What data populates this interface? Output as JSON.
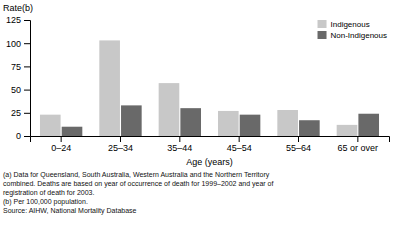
{
  "chart_data": {
    "type": "bar",
    "categories": [
      "0–24",
      "25–34",
      "35–44",
      "45–54",
      "55–64",
      "65 or over"
    ],
    "series": [
      {
        "name": "Indigenous",
        "color": "#c8c8c8",
        "values": [
          23,
          103,
          57,
          27,
          28,
          12
        ]
      },
      {
        "name": "Non-Indigenous",
        "color": "#696969",
        "values": [
          10,
          33,
          30,
          23,
          17,
          24
        ]
      }
    ],
    "ylabel": "Rate(b)",
    "xlabel": "Age (years)",
    "ylim": [
      0,
      125
    ],
    "yticks": [
      0,
      25,
      50,
      75,
      100,
      125
    ],
    "grid": false,
    "legend": "upper right",
    "annotations": [
      "(a) Data for Queensland, South Australia, Western Australia and the Northern Territory",
      "combined. Deaths are based on year of occurrence of death for 1999–2002 and year of",
      "registration of death for 2003.",
      "(b) Per 100,000 population.",
      "Source: AIHW, National Mortality Database"
    ]
  }
}
